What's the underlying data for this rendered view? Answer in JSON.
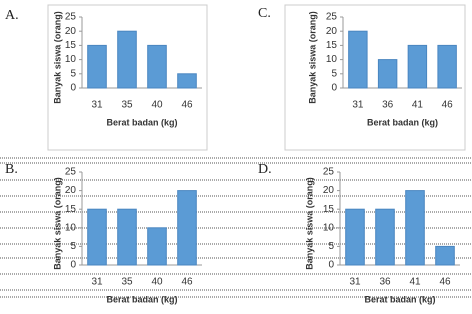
{
  "chart_data": [
    {
      "type": "bar",
      "label": "A.",
      "categories": [
        "31",
        "35",
        "40",
        "46"
      ],
      "values": [
        15,
        20,
        15,
        5
      ],
      "color": "#5b9bd5",
      "ylim": [
        0,
        25
      ],
      "yticks": [
        0,
        5,
        10,
        15,
        20,
        25
      ],
      "y_label": "Banyak siswa (orang)",
      "x_label": "Berat badan (kg)"
    },
    {
      "type": "bar",
      "label": "C.",
      "categories": [
        "31",
        "36",
        "41",
        "46"
      ],
      "values": [
        20,
        10,
        15,
        15
      ],
      "color": "#5b9bd5",
      "ylim": [
        0,
        25
      ],
      "yticks": [
        0,
        5,
        10,
        15,
        20,
        25
      ],
      "y_label": "Banyak siswa (orang)",
      "x_label": "Berat badan (kg)"
    },
    {
      "type": "bar",
      "label": "B.",
      "categories": [
        "31",
        "35",
        "40",
        "46"
      ],
      "values": [
        15,
        15,
        10,
        20
      ],
      "color": "#5b9bd5",
      "ylim": [
        0,
        25
      ],
      "yticks": [
        0,
        5,
        10,
        15,
        20,
        25
      ],
      "y_label": "Banyak siswa (orang)",
      "x_label": "Berat badan (kg)"
    },
    {
      "type": "bar",
      "label": "D.",
      "categories": [
        "31",
        "36",
        "41",
        "46"
      ],
      "values": [
        15,
        15,
        20,
        5
      ],
      "color": "#5b9bd5",
      "ylim": [
        0,
        25
      ],
      "yticks": [
        0,
        5,
        10,
        15,
        20,
        25
      ],
      "y_label": "Banyak siswa (orang)",
      "x_label": "Berat badan (kg)"
    }
  ]
}
